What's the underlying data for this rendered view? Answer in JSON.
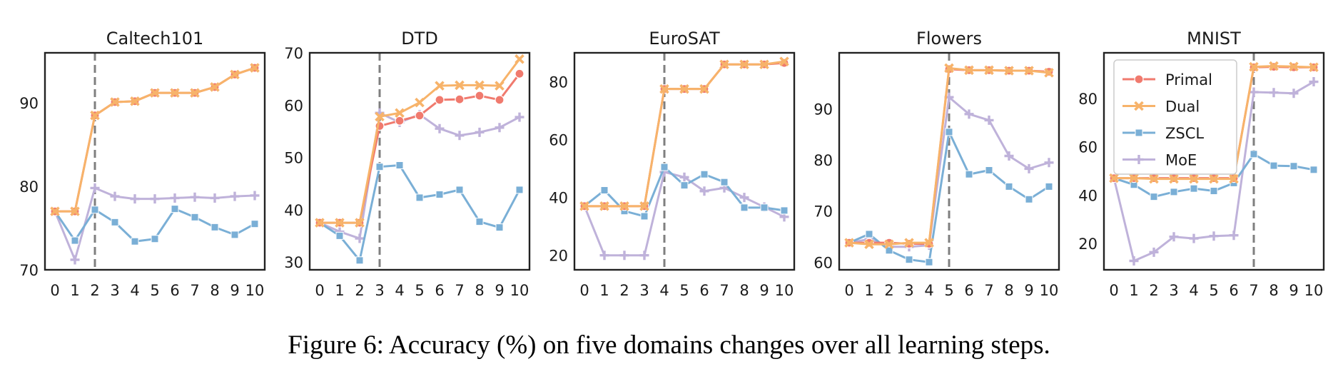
{
  "caption": "Figure 6: Accuracy (%) on five domains changes over all learning steps.",
  "colors": {
    "primal": "#f07a6e",
    "dual": "#f7b36a",
    "zscl": "#7aafd6",
    "moe": "#bfb2da",
    "divider": "#7f7f7f"
  },
  "chart_data": [
    {
      "type": "line",
      "title": "Caltech101",
      "x": [
        0,
        1,
        2,
        3,
        4,
        5,
        6,
        7,
        8,
        9,
        10
      ],
      "ylim": [
        70,
        96
      ],
      "yticks": [
        70,
        80,
        90
      ],
      "divider_x": 2,
      "series": [
        {
          "name": "Primal",
          "values": [
            77,
            77,
            88.5,
            90.1,
            90.2,
            91.2,
            91.2,
            91.2,
            91.9,
            93.4,
            94.2
          ]
        },
        {
          "name": "Dual",
          "values": [
            77,
            77,
            88.5,
            90.1,
            90.2,
            91.2,
            91.2,
            91.2,
            91.9,
            93.4,
            94.2
          ]
        },
        {
          "name": "ZSCL",
          "values": [
            77,
            73.5,
            77.2,
            75.7,
            73.4,
            73.7,
            77.3,
            76.3,
            75.1,
            74.2,
            75.5
          ]
        },
        {
          "name": "MoE",
          "values": [
            77,
            71.2,
            79.8,
            78.8,
            78.5,
            78.5,
            78.6,
            78.7,
            78.6,
            78.8,
            78.9
          ]
        }
      ]
    },
    {
      "type": "line",
      "title": "DTD",
      "x": [
        0,
        1,
        2,
        3,
        4,
        5,
        6,
        7,
        8,
        9,
        10
      ],
      "ylim": [
        28.5,
        70
      ],
      "yticks": [
        30,
        40,
        50,
        60,
        70
      ],
      "divider_x": 3,
      "series": [
        {
          "name": "Primal",
          "values": [
            37.5,
            37.5,
            37.5,
            56,
            57,
            58,
            61,
            61.1,
            61.8,
            61,
            66
          ]
        },
        {
          "name": "Dual",
          "values": [
            37.5,
            37.5,
            37.5,
            57.8,
            58.5,
            60.5,
            63.7,
            63.8,
            63.8,
            63.7,
            68.8
          ]
        },
        {
          "name": "ZSCL",
          "values": [
            37.5,
            35,
            30.3,
            48.2,
            48.5,
            42.3,
            42.9,
            43.8,
            37.7,
            36.6,
            43.8
          ]
        },
        {
          "name": "MoE",
          "values": [
            37.5,
            35.8,
            34.5,
            58.5,
            56.7,
            58.2,
            55.5,
            54.2,
            54.8,
            55.7,
            57.7
          ]
        }
      ]
    },
    {
      "type": "line",
      "title": "EuroSAT",
      "x": [
        0,
        1,
        2,
        3,
        4,
        5,
        6,
        7,
        8,
        9,
        10
      ],
      "ylim": [
        15,
        90
      ],
      "yticks": [
        20,
        40,
        60,
        80
      ],
      "divider_x": 4,
      "series": [
        {
          "name": "Primal",
          "values": [
            37,
            37,
            37,
            37,
            77.5,
            77.5,
            77.5,
            86,
            86,
            86,
            86.5
          ]
        },
        {
          "name": "Dual",
          "values": [
            37,
            37,
            37,
            37,
            77.5,
            77.5,
            77.5,
            86,
            86,
            86,
            87
          ]
        },
        {
          "name": "ZSCL",
          "values": [
            37,
            42.5,
            35.3,
            33.5,
            50.5,
            44.2,
            48,
            45.3,
            36.5,
            36.5,
            35.5
          ]
        },
        {
          "name": "MoE",
          "values": [
            37,
            20,
            20,
            20,
            48.8,
            47,
            42.2,
            43.3,
            40,
            36.7,
            33.3
          ]
        }
      ]
    },
    {
      "type": "line",
      "title": "Flowers",
      "x": [
        0,
        1,
        2,
        3,
        4,
        5,
        6,
        7,
        8,
        9,
        10
      ],
      "ylim": [
        58.5,
        101
      ],
      "yticks": [
        60,
        70,
        80,
        90
      ],
      "divider_x": 5,
      "series": [
        {
          "name": "Primal",
          "values": [
            63.8,
            63.8,
            63.8,
            63.6,
            63.6,
            97.8,
            97.6,
            97.6,
            97.5,
            97.5,
            97.3
          ]
        },
        {
          "name": "Dual",
          "values": [
            63.8,
            63.5,
            63.5,
            63.8,
            63.8,
            98,
            97.6,
            97.6,
            97.5,
            97.5,
            97.1
          ]
        },
        {
          "name": "ZSCL",
          "values": [
            63.8,
            65.5,
            62.3,
            60.5,
            60,
            85.5,
            77.2,
            78,
            74.8,
            72.3,
            74.8
          ]
        },
        {
          "name": "MoE",
          "values": [
            63.8,
            64.5,
            63,
            63,
            63.3,
            92.3,
            89,
            87.8,
            80.8,
            78.3,
            79.5
          ]
        }
      ]
    },
    {
      "type": "line",
      "title": "MNIST",
      "x": [
        0,
        1,
        2,
        3,
        4,
        5,
        6,
        7,
        8,
        9,
        10
      ],
      "ylim": [
        9,
        99
      ],
      "yticks": [
        20,
        40,
        60,
        80
      ],
      "divider_x": 7,
      "legend": "top-left",
      "series": [
        {
          "name": "Primal",
          "values": [
            47,
            47,
            47,
            47,
            47,
            47,
            47,
            93,
            93.2,
            93,
            93
          ]
        },
        {
          "name": "Dual",
          "values": [
            47,
            47,
            46.7,
            46.7,
            46.7,
            46.7,
            46.7,
            93.2,
            93.5,
            93.3,
            93
          ]
        },
        {
          "name": "ZSCL",
          "values": [
            47,
            44.3,
            39.3,
            41.3,
            42.7,
            41.7,
            45,
            57,
            52.2,
            52,
            50.5
          ]
        },
        {
          "name": "MoE",
          "values": [
            47,
            12.7,
            16.3,
            22.7,
            22,
            23,
            23.3,
            82.7,
            82.5,
            82.2,
            87
          ]
        }
      ]
    }
  ]
}
